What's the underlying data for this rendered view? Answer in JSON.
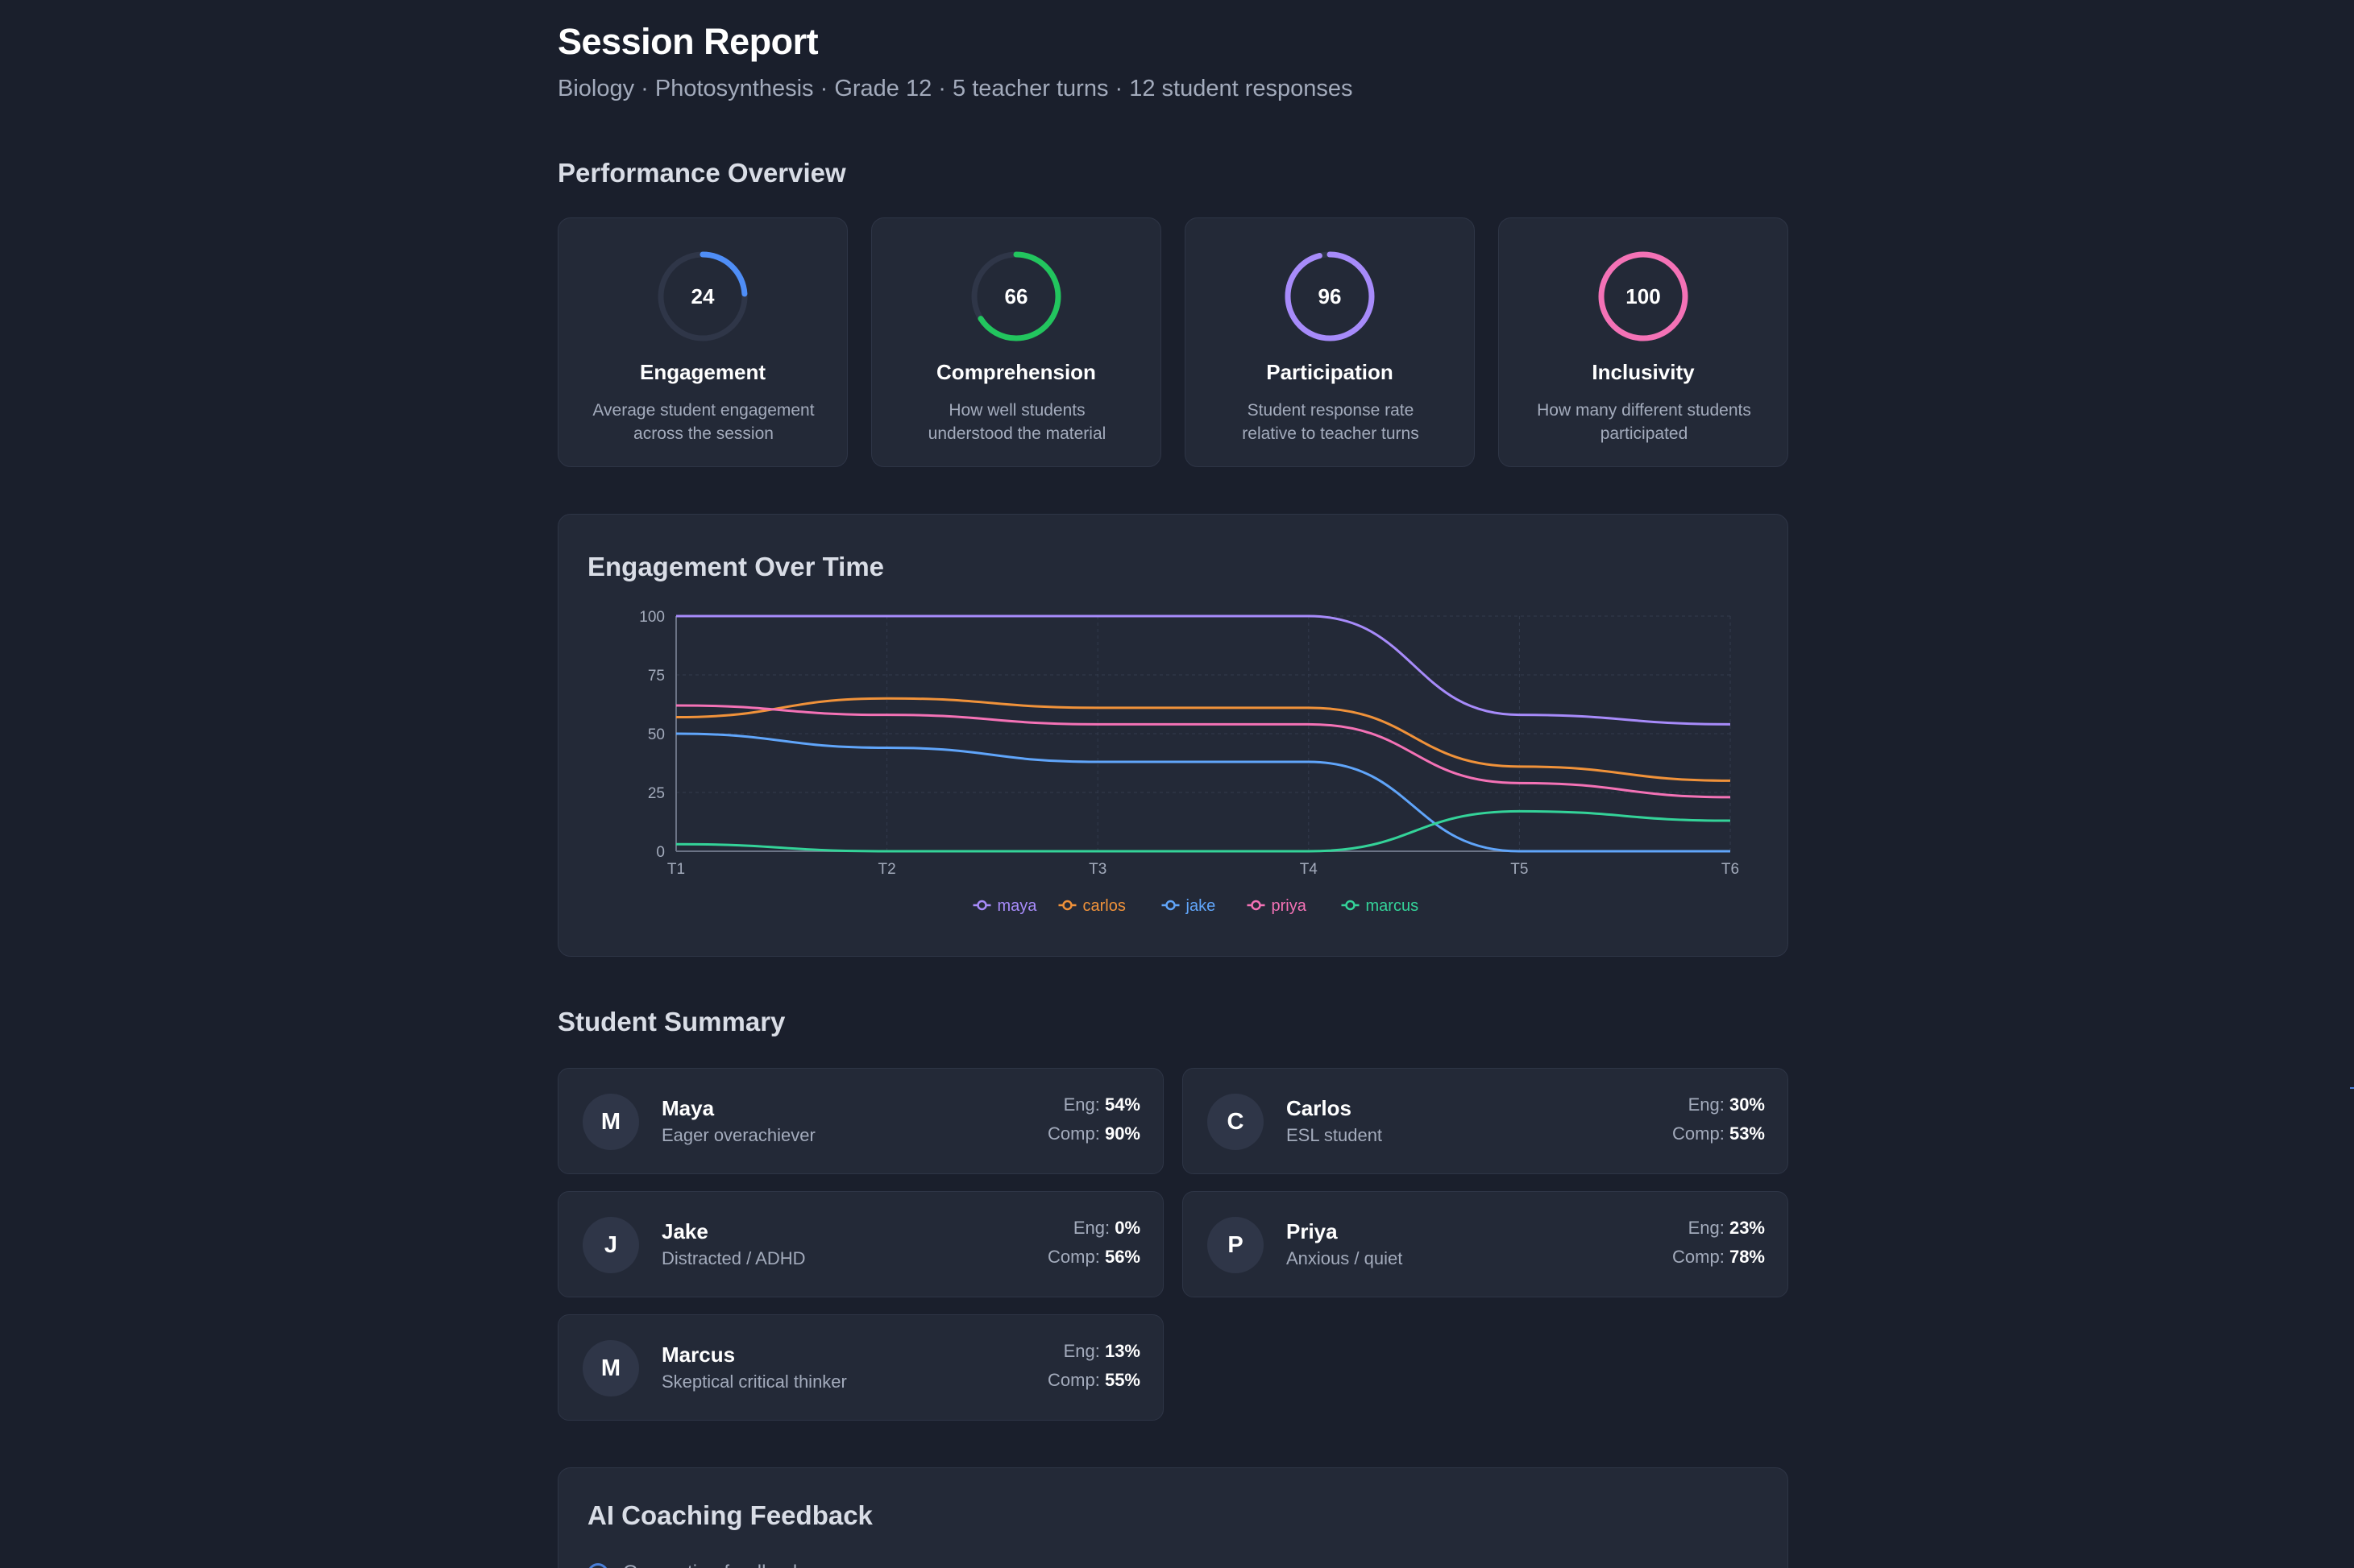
{
  "header": {
    "title": "Session Report",
    "subtitle": "Biology · Photosynthesis · Grade 12 · 5 teacher turns · 12 student responses"
  },
  "overview": {
    "title": "Performance Overview",
    "metrics": [
      {
        "value": "24",
        "percent": 24,
        "color": "#4f8ef7",
        "title": "Engagement",
        "desc_line1": "Average student engagement",
        "desc_line2": "across the session"
      },
      {
        "value": "66",
        "percent": 66,
        "color": "#22c55e",
        "title": "Comprehension",
        "desc_line1": "How well students",
        "desc_line2": "understood the material"
      },
      {
        "value": "96",
        "percent": 96,
        "color": "#a78bfa",
        "title": "Participation",
        "desc_line1": "Student response rate",
        "desc_line2": "relative to teacher turns"
      },
      {
        "value": "100",
        "percent": 100,
        "color": "#f472b6",
        "title": "Inclusivity",
        "desc_line1": "How many different students",
        "desc_line2": "participated"
      }
    ]
  },
  "engagement_chart": {
    "title": "Engagement Over Time"
  },
  "chart_data": {
    "type": "line",
    "title": "Engagement Over Time",
    "x": [
      "T1",
      "T2",
      "T3",
      "T4",
      "T5",
      "T6"
    ],
    "ylim": [
      0,
      100
    ],
    "yticks": [
      0,
      25,
      50,
      75,
      100
    ],
    "grid": true,
    "legend": "bottom-center",
    "series": [
      {
        "name": "maya",
        "color": "#a78bfa",
        "values": [
          100,
          100,
          100,
          100,
          58,
          54
        ]
      },
      {
        "name": "carlos",
        "color": "#f0923a",
        "values": [
          57,
          65,
          61,
          61,
          36,
          30
        ]
      },
      {
        "name": "jake",
        "color": "#60a5fa",
        "values": [
          50,
          44,
          38,
          38,
          0,
          0
        ]
      },
      {
        "name": "priya",
        "color": "#f472b6",
        "values": [
          62,
          58,
          54,
          54,
          29,
          23
        ]
      },
      {
        "name": "marcus",
        "color": "#34d399",
        "values": [
          3,
          0,
          0,
          0,
          17,
          13
        ]
      }
    ]
  },
  "students": {
    "title": "Student Summary",
    "eng_label": "Eng:",
    "comp_label": "Comp:",
    "items": [
      {
        "initial": "M",
        "name": "Maya",
        "desc": "Eager overachiever",
        "eng": "54%",
        "comp": "90%"
      },
      {
        "initial": "C",
        "name": "Carlos",
        "desc": "ESL student",
        "eng": "30%",
        "comp": "53%"
      },
      {
        "initial": "J",
        "name": "Jake",
        "desc": "Distracted / ADHD",
        "eng": "0%",
        "comp": "56%"
      },
      {
        "initial": "P",
        "name": "Priya",
        "desc": "Anxious / quiet",
        "eng": "23%",
        "comp": "78%"
      },
      {
        "initial": "M",
        "name": "Marcus",
        "desc": "Skeptical critical thinker",
        "eng": "13%",
        "comp": "55%"
      }
    ]
  },
  "coaching": {
    "title": "AI Coaching Feedback",
    "loading_text": "Generating feedback..."
  }
}
